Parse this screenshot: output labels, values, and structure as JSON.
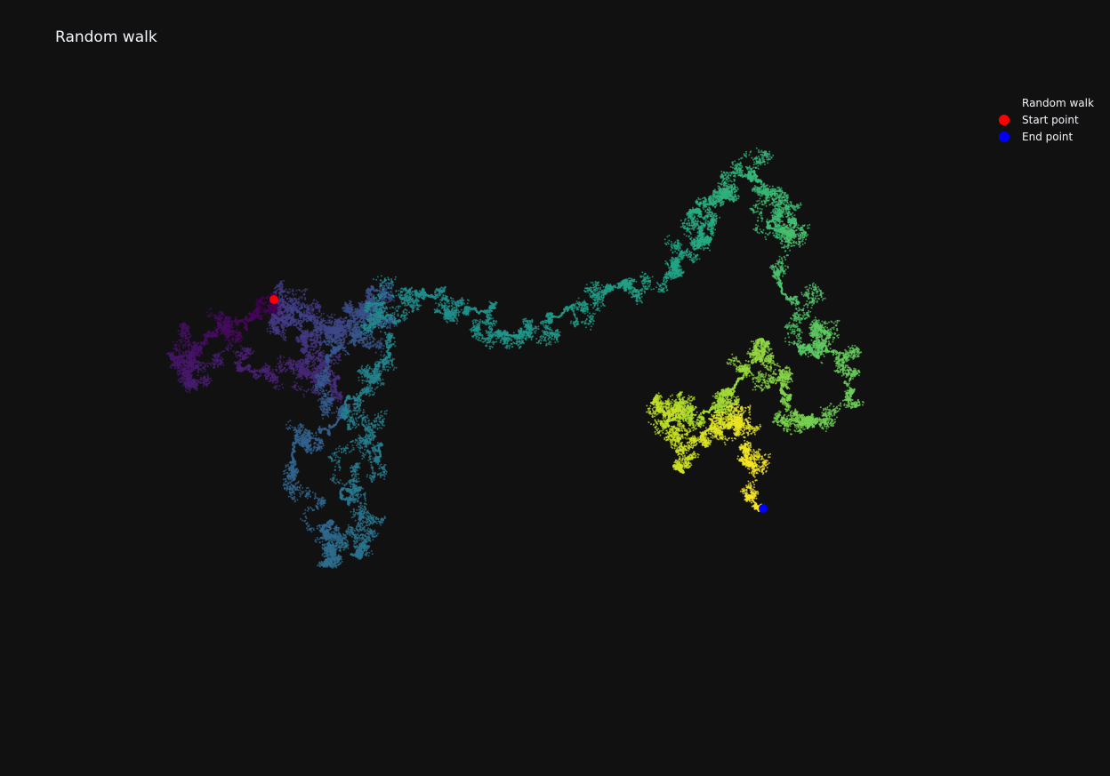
{
  "chart_data": {
    "type": "scatter",
    "title": "Random walk",
    "xlabel": "",
    "ylabel": "",
    "axes_visible": false,
    "grid": false,
    "background": "#111111",
    "colorscale": "Viridis",
    "legend_position": "top-right",
    "series": [
      {
        "name": "Random walk",
        "marker": "point",
        "color_by": "step index (Viridis, purple at start to yellow at end)",
        "path_waypoints": [
          [
            -130,
            85
          ],
          [
            -150,
            65
          ],
          [
            -195,
            45
          ],
          [
            -240,
            20
          ],
          [
            -230,
            -10
          ],
          [
            -160,
            10
          ],
          [
            -95,
            5
          ],
          [
            -60,
            -20
          ],
          [
            -95,
            40
          ],
          [
            -130,
            65
          ],
          [
            -100,
            70
          ],
          [
            -70,
            45
          ],
          [
            -40,
            60
          ],
          [
            -20,
            100
          ],
          [
            -10,
            60
          ],
          [
            -70,
            20
          ],
          [
            -60,
            -55
          ],
          [
            -110,
            -90
          ],
          [
            -75,
            -175
          ],
          [
            -70,
            -210
          ],
          [
            -30,
            -200
          ],
          [
            -55,
            -130
          ],
          [
            -10,
            -90
          ],
          [
            -50,
            -30
          ],
          [
            0,
            20
          ],
          [
            -20,
            80
          ],
          [
            40,
            90
          ],
          [
            100,
            70
          ],
          [
            130,
            45
          ],
          [
            190,
            65
          ],
          [
            260,
            100
          ],
          [
            320,
            120
          ],
          [
            360,
            150
          ],
          [
            340,
            185
          ],
          [
            380,
            205
          ],
          [
            410,
            230
          ],
          [
            430,
            165
          ],
          [
            455,
            175
          ],
          [
            440,
            100
          ],
          [
            480,
            20
          ],
          [
            490,
            50
          ],
          [
            520,
            -20
          ],
          [
            470,
            -60
          ],
          [
            440,
            -20
          ],
          [
            420,
            40
          ],
          [
            390,
            -10
          ],
          [
            360,
            -40
          ],
          [
            320,
            -50
          ],
          [
            300,
            -30
          ],
          [
            330,
            -110
          ],
          [
            360,
            -60
          ],
          [
            390,
            -50
          ],
          [
            400,
            -90
          ],
          [
            420,
            -150
          ]
        ]
      },
      {
        "name": "Start point",
        "color": "#ff0000",
        "x": [
          -130
        ],
        "y": [
          85
        ]
      },
      {
        "name": "End point",
        "color": "#0000ff",
        "x": [
          420
        ],
        "y": [
          -150
        ]
      }
    ]
  }
}
